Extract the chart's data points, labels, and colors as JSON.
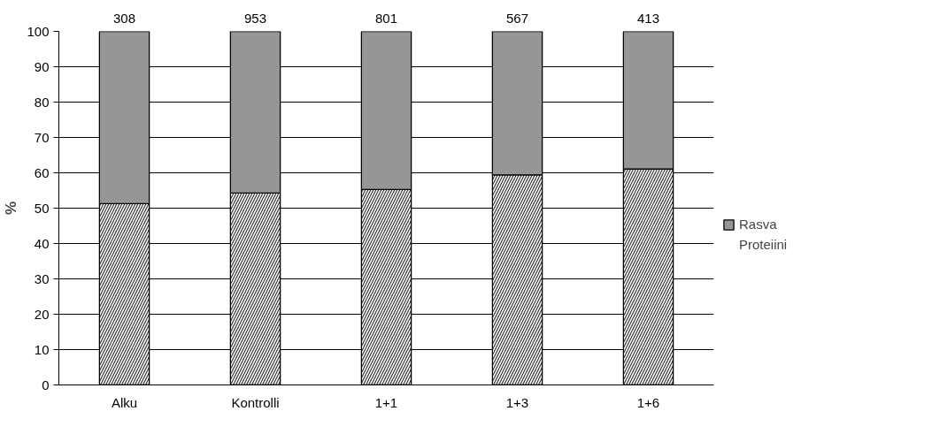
{
  "chart_data": {
    "type": "bar",
    "stacked": true,
    "ylabel": "%",
    "categories": [
      "Alku",
      "Kontrolli",
      "1+1",
      "1+3",
      "1+6"
    ],
    "series": [
      {
        "name": "Proteiini",
        "color": "#ffffff",
        "values": [
          51.3,
          54.3,
          55.3,
          59.4,
          61.1
        ]
      },
      {
        "name": "Rasva",
        "color": "#969696",
        "values": [
          48.7,
          45.7,
          44.7,
          40.6,
          38.9
        ]
      }
    ],
    "annotations": [
      "308",
      "953",
      "801",
      "567",
      "413"
    ],
    "ylim": [
      0,
      100
    ],
    "yticks": [
      0,
      10,
      20,
      30,
      40,
      50,
      60,
      70,
      80,
      90,
      100
    ],
    "grid": "y",
    "legend": "right"
  }
}
